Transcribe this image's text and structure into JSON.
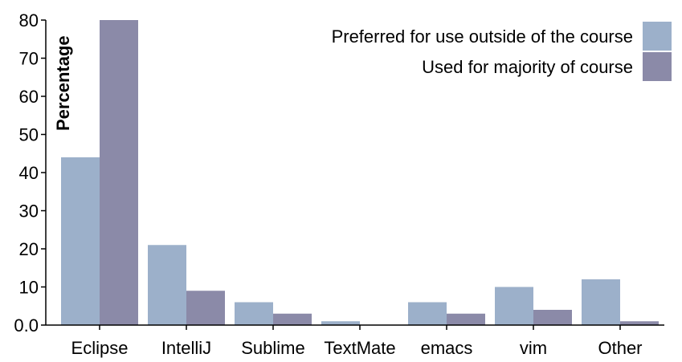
{
  "chart_data": {
    "type": "bar",
    "categories": [
      "Eclipse",
      "IntelliJ",
      "Sublime",
      "TextMate",
      "emacs",
      "vim",
      "Other"
    ],
    "series": [
      {
        "name": "Preferred for use outside of the course",
        "values": [
          44,
          21,
          6,
          1,
          6,
          10,
          12
        ],
        "color": "#9cb0ca"
      },
      {
        "name": "Used for majority of course",
        "values": [
          80,
          9,
          3,
          0,
          3,
          4,
          1
        ],
        "color": "#8b8aa8"
      }
    ],
    "ylabel": "Percentage",
    "xlabel": "",
    "ylim": [
      0,
      80
    ],
    "yticks": [
      0,
      10,
      20,
      30,
      40,
      50,
      60,
      70,
      80
    ],
    "ytick_labels": [
      "0.0",
      "10",
      "20",
      "30",
      "40",
      "50",
      "60",
      "70",
      "80"
    ],
    "grid": false,
    "legend_position": "top-right"
  }
}
